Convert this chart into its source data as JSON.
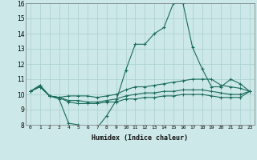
{
  "xlabel": "Humidex (Indice chaleur)",
  "ylabel": "",
  "background_color": "#cce8e8",
  "grid_color": "#aacfcf",
  "line_color": "#1a6b5a",
  "x": [
    0,
    1,
    2,
    3,
    4,
    5,
    6,
    7,
    8,
    9,
    10,
    11,
    12,
    13,
    14,
    15,
    16,
    17,
    18,
    19,
    20,
    21,
    22,
    23
  ],
  "line1": [
    10.2,
    10.6,
    9.9,
    9.7,
    8.1,
    8.0,
    7.8,
    7.8,
    8.6,
    9.6,
    11.6,
    13.3,
    13.3,
    14.0,
    14.4,
    16.0,
    16.0,
    13.1,
    11.7,
    10.5,
    10.5,
    11.0,
    10.7,
    10.2
  ],
  "line2": [
    10.2,
    10.6,
    9.9,
    9.8,
    9.9,
    9.9,
    9.9,
    9.8,
    9.9,
    10.0,
    10.3,
    10.5,
    10.5,
    10.6,
    10.7,
    10.8,
    10.9,
    11.0,
    11.0,
    11.0,
    10.6,
    10.5,
    10.4,
    10.2
  ],
  "line3": [
    10.2,
    10.5,
    9.9,
    9.8,
    9.6,
    9.6,
    9.5,
    9.5,
    9.6,
    9.7,
    9.9,
    10.0,
    10.1,
    10.1,
    10.2,
    10.2,
    10.3,
    10.3,
    10.3,
    10.2,
    10.1,
    10.0,
    10.0,
    10.2
  ],
  "line4": [
    10.2,
    10.5,
    9.9,
    9.8,
    9.5,
    9.4,
    9.4,
    9.4,
    9.5,
    9.5,
    9.7,
    9.7,
    9.8,
    9.8,
    9.9,
    9.9,
    10.0,
    10.0,
    10.0,
    9.9,
    9.8,
    9.8,
    9.8,
    10.2
  ],
  "ylim": [
    8,
    16
  ],
  "xlim": [
    -0.5,
    23.5
  ],
  "yticks": [
    8,
    9,
    10,
    11,
    12,
    13,
    14,
    15,
    16
  ],
  "xticks": [
    0,
    1,
    2,
    3,
    4,
    5,
    6,
    7,
    8,
    9,
    10,
    11,
    12,
    13,
    14,
    15,
    16,
    17,
    18,
    19,
    20,
    21,
    22,
    23
  ],
  "xtick_labels": [
    "0",
    "1",
    "2",
    "3",
    "4",
    "5",
    "6",
    "7",
    "8",
    "9",
    "10",
    "11",
    "12",
    "13",
    "14",
    "15",
    "16",
    "17",
    "18",
    "19",
    "20",
    "21",
    "22",
    "23"
  ]
}
